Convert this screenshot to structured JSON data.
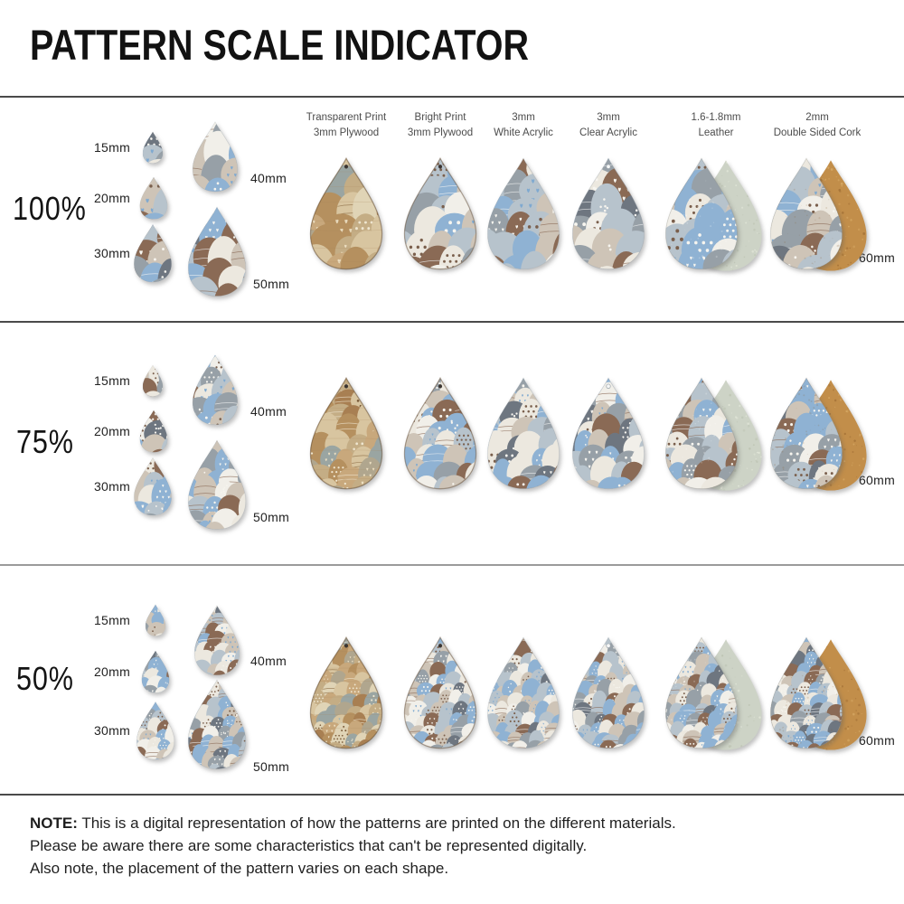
{
  "title": "PATTERN SCALE INDICATOR",
  "rows": [
    {
      "label": "100%",
      "scale": 1
    },
    {
      "label": "75%",
      "scale": 0.75
    },
    {
      "label": "50%",
      "scale": 0.5
    }
  ],
  "sizes": {
    "s15": "15mm",
    "s20": "20mm",
    "s30": "30mm",
    "s40": "40mm",
    "s50": "50mm",
    "s60": "60mm"
  },
  "materials": [
    {
      "line1": "Transparent Print",
      "line2": "3mm Plywood",
      "variant": "wood"
    },
    {
      "line1": "Bright Print",
      "line2": "3mm Plywood",
      "variant": "bright"
    },
    {
      "line1": "3mm",
      "line2": "White Acrylic",
      "variant": "white-acrylic"
    },
    {
      "line1": "3mm",
      "line2": "Clear Acrylic",
      "variant": "clear-acrylic"
    },
    {
      "line1": "1.6-1.8mm",
      "line2": "Leather",
      "variant": "leather"
    },
    {
      "line1": "2mm",
      "line2": "Double Sided Cork",
      "variant": "cork"
    }
  ],
  "note": {
    "prefix": "NOTE:",
    "lines": [
      "This is a digital representation of how the patterns are printed on the different materials.",
      "Please be aware there are some characteristics that can't be represented digitally.",
      "Also note, the placement of the pattern varies on each shape."
    ]
  },
  "palette": {
    "standard_base": "#d8dde0",
    "standard_eggs": [
      "#8fb2d3",
      "#b7c3cc",
      "#ece8df",
      "#cec4b7",
      "#97a0a7",
      "#6e7680",
      "#8a6a55",
      "#f1efe9"
    ],
    "wood_base": "#d3ba93",
    "wood_eggs": [
      "#c8a87c",
      "#b5905f",
      "#a87f52",
      "#d8c5a0",
      "#c4ad85",
      "#b0a68e",
      "#9aa5a2",
      "#e0d4b6"
    ],
    "white_acrylic_base": "#e8e6e0",
    "clear_acrylic_base": "#cdd3d7",
    "decor_standard": {
      "dot_dark": "#7a5f4c",
      "dot_light": "#f7f5ef",
      "heart_light": "#f7f5ef",
      "heart_blue": "#7fa9d0",
      "arc_dark": "#8a6a55",
      "arc_light": "#f0f1f1"
    },
    "decor_wood": {
      "dot_dark": "#7b5c3a",
      "dot_light": "#efe6d0",
      "heart_light": "#ecdfc2",
      "heart_blue": "#9fb4b4",
      "arc_dark": "#8a6a42",
      "arc_light": "#efe6d0"
    },
    "leather_back": "#cdd3c6",
    "leather_speckle": [
      "#e9eddf",
      "#b9c0ae"
    ],
    "cork_back": "#c28e4a",
    "cork_speckle": [
      "#9e6c33",
      "#dcb06b"
    ],
    "wood_grain": "#a8855c",
    "hole_dark": "#3b3531",
    "hole_ring": "#98a1a8",
    "line_dark": "#4a4a4a",
    "line_light": "#9b9b9b"
  }
}
